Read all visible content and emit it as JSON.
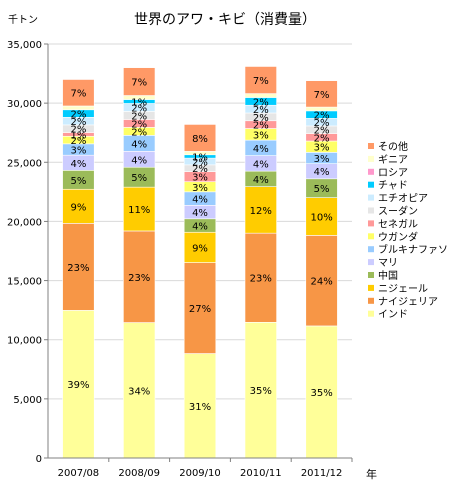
{
  "chart_data": {
    "type": "bar",
    "stacked": true,
    "title": "世界のアワ・キビ（消費量）",
    "ylabel": "千トン",
    "xlabel": "年",
    "ylim": [
      0,
      35000
    ],
    "yticks": [
      0,
      5000,
      10000,
      15000,
      20000,
      25000,
      30000,
      35000
    ],
    "ytick_labels": [
      "0",
      "5,000",
      "10,000",
      "15,000",
      "20,000",
      "25,000",
      "30,000",
      "35,000"
    ],
    "grid": true,
    "legend_position": "right",
    "categories": [
      "2007/08",
      "2008/09",
      "2009/10",
      "2010/11",
      "2011/12"
    ],
    "totals": [
      32000,
      33000,
      28200,
      33100,
      31900
    ],
    "series": [
      {
        "name": "インド",
        "color": "#ffff99",
        "percents": [
          39,
          34,
          31,
          35,
          35
        ],
        "labels": [
          "39%",
          "34%",
          "31%",
          "35%",
          "35%"
        ]
      },
      {
        "name": "ナイジェリア",
        "color": "#f79646",
        "percents": [
          23,
          23,
          27,
          23,
          24
        ],
        "labels": [
          "23%",
          "23%",
          "27%",
          "23%",
          "24%"
        ]
      },
      {
        "name": "ニジェール",
        "color": "#ffcc00",
        "percents": [
          9,
          11,
          9,
          12,
          10
        ],
        "labels": [
          "9%",
          "11%",
          "9%",
          "12%",
          "10%"
        ]
      },
      {
        "name": "中国",
        "color": "#9bbb59",
        "percents": [
          5,
          5,
          4,
          4,
          5
        ],
        "labels": [
          "5%",
          "5%",
          "4%",
          "4%",
          "5%"
        ]
      },
      {
        "name": "マリ",
        "color": "#ccccff",
        "percents": [
          4,
          4,
          4,
          4,
          4
        ],
        "labels": [
          "4%",
          "4%",
          "4%",
          "4%",
          "4%"
        ]
      },
      {
        "name": "ブルキナファソ",
        "color": "#99ccff",
        "percents": [
          3,
          4,
          4,
          4,
          3
        ],
        "labels": [
          "3%",
          "4%",
          "4%",
          "4%",
          "3%"
        ]
      },
      {
        "name": "ウガンダ",
        "color": "#ffff66",
        "percents": [
          2,
          2,
          3,
          3,
          3
        ],
        "labels": [
          "2%",
          "2%",
          "3%",
          "3%",
          "3%"
        ]
      },
      {
        "name": "セネガル",
        "color": "#ff9999",
        "percents": [
          1,
          2,
          3,
          2,
          2
        ],
        "labels": [
          "1%",
          "2%",
          "3%",
          "2%",
          "2%"
        ]
      },
      {
        "name": "スーダン",
        "color": "#e6e6e6",
        "percents": [
          2,
          2,
          2,
          2,
          2
        ],
        "labels": [
          "2%",
          "2%",
          "2%",
          "2%",
          "2%"
        ]
      },
      {
        "name": "エチオピア",
        "color": "#ccecff",
        "percents": [
          2,
          2,
          2,
          2,
          2
        ],
        "labels": [
          "2%",
          "2%",
          "2%",
          "2%",
          "2%"
        ]
      },
      {
        "name": "チャド",
        "color": "#00ccff",
        "percents": [
          2,
          1,
          1,
          2,
          2
        ],
        "labels": [
          "2%",
          "1%",
          "1%",
          "2%",
          "2%"
        ]
      },
      {
        "name": "ロシア",
        "color": "#ff99cc",
        "percents": [
          0,
          0,
          0,
          0,
          0
        ],
        "labels": [
          "",
          "",
          "",
          "",
          ""
        ]
      },
      {
        "name": "ギニア",
        "color": "#ffffcc",
        "percents": [
          1,
          1,
          1,
          1,
          1
        ],
        "labels": [
          "",
          "",
          "",
          "",
          ""
        ]
      },
      {
        "name": "その他",
        "color": "#ff9966",
        "percents": [
          7,
          7,
          8,
          7,
          7
        ],
        "labels": [
          "7%",
          "7%",
          "8%",
          "7%",
          "7%"
        ]
      }
    ]
  }
}
